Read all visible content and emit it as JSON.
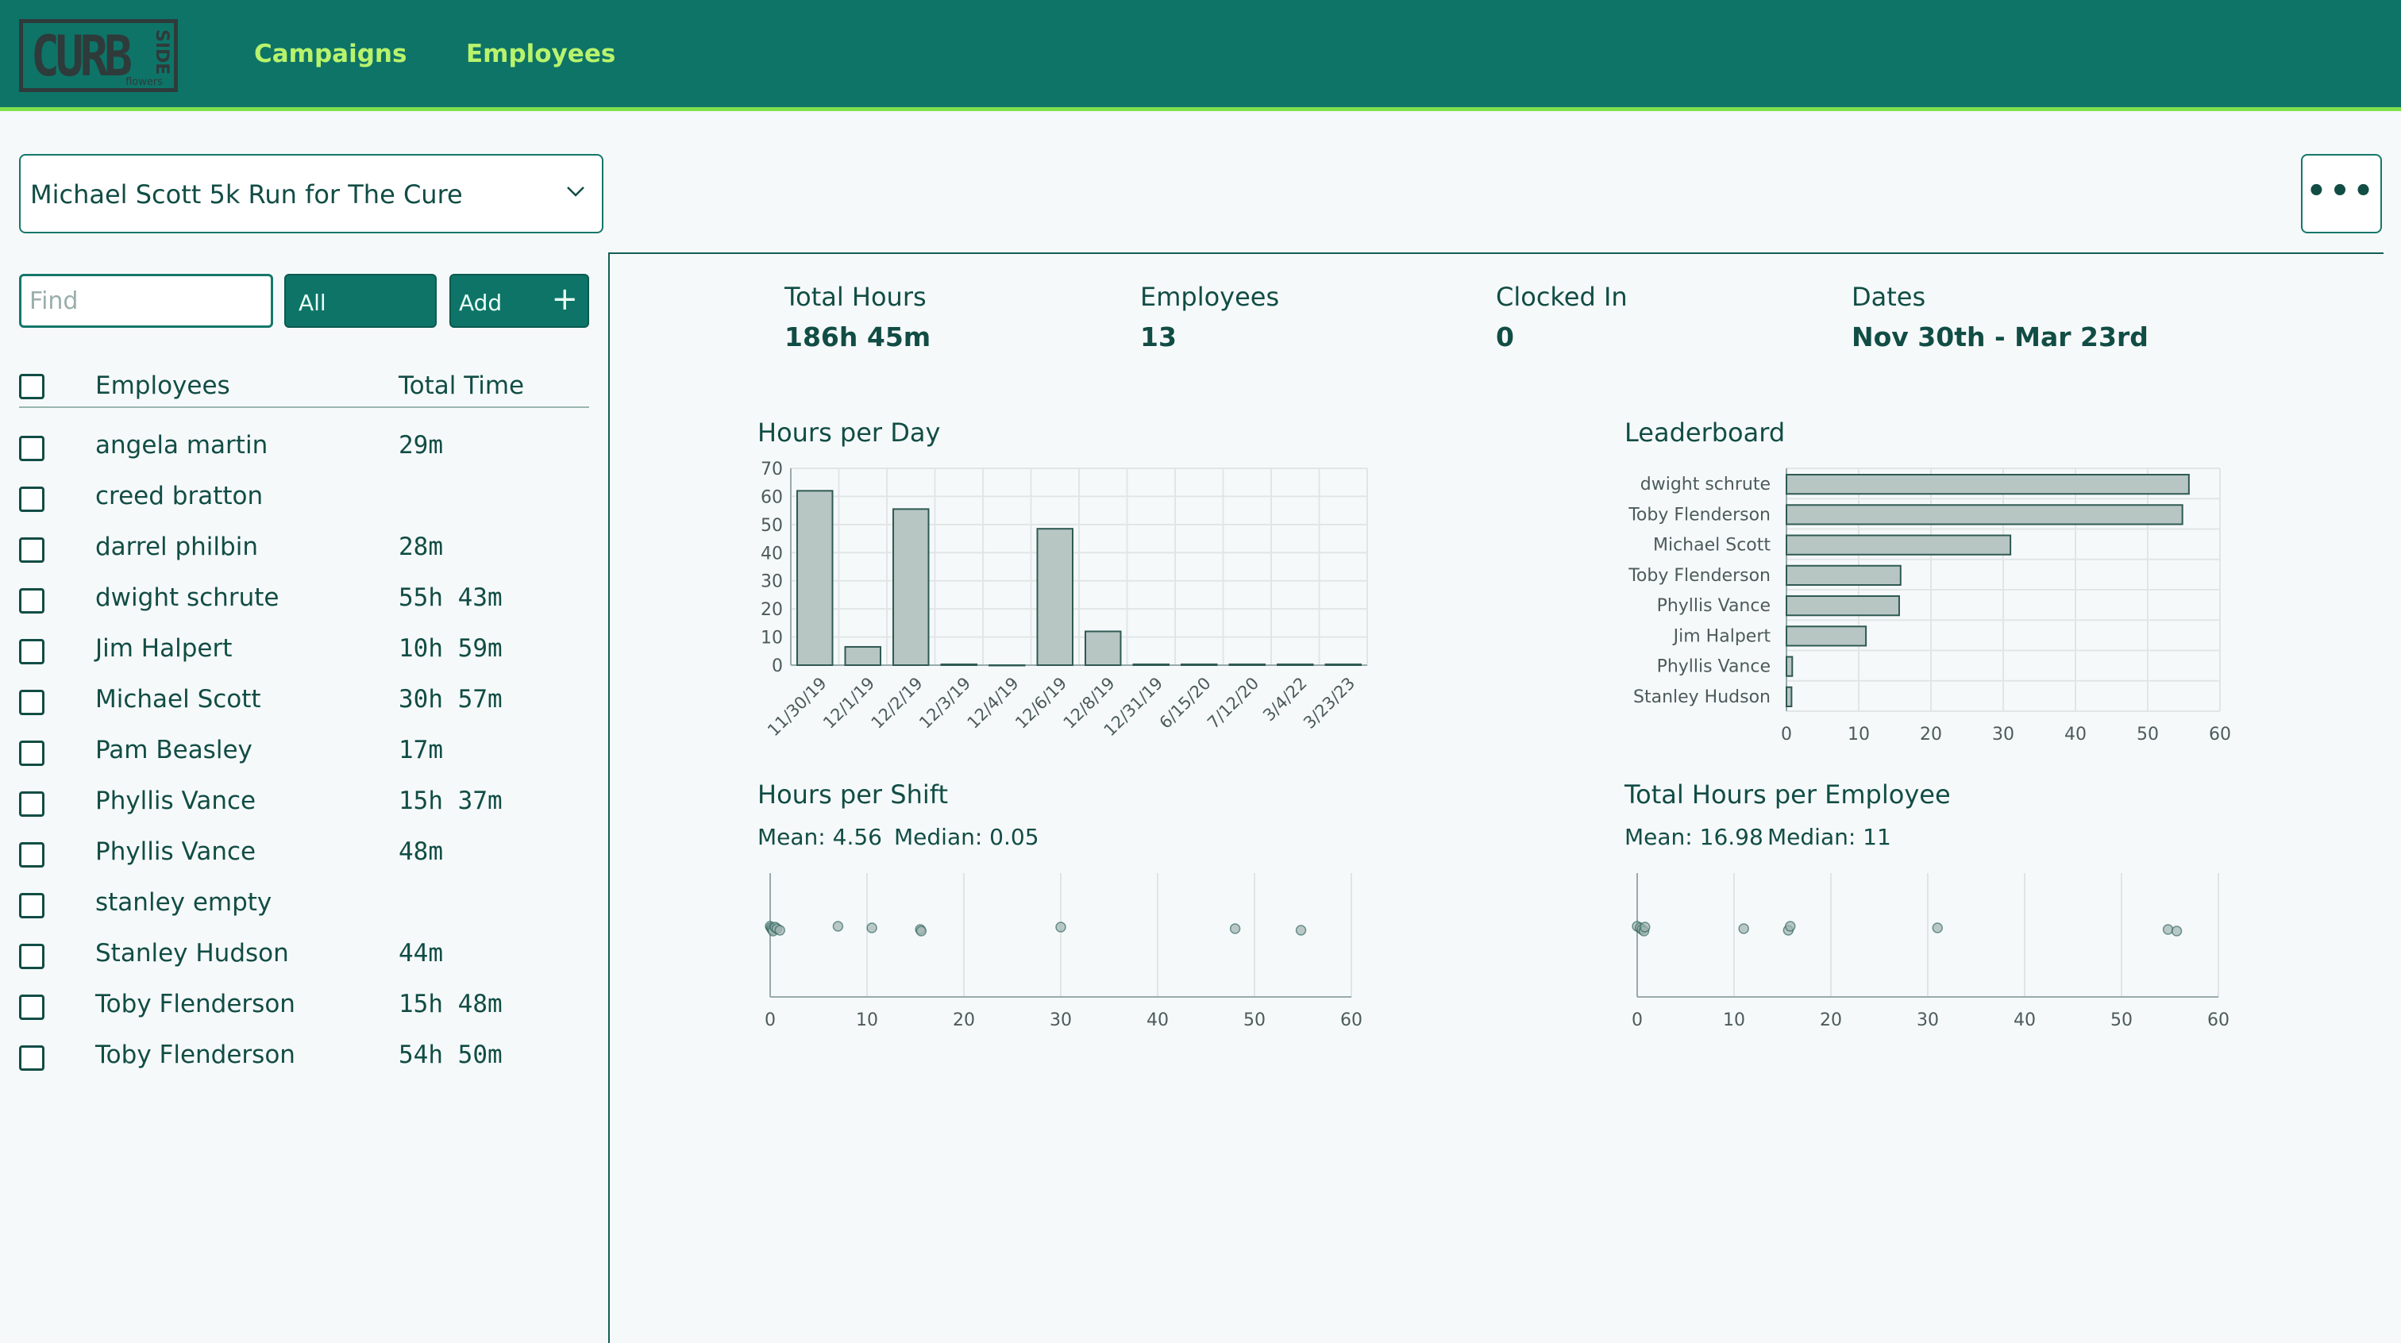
{
  "nav": {
    "logo_text": "CURB",
    "logo_side": "SIDE",
    "logo_sub": "flowers",
    "links": [
      "Campaigns",
      "Employees"
    ]
  },
  "campaign": {
    "selected": "Michael Scott 5k Run for The Cure"
  },
  "more_label": "•••",
  "left_panel": {
    "find_placeholder": "Find",
    "all_label": "All",
    "add_label": "Add",
    "add_icon": "+",
    "col_employees": "Employees",
    "col_total_time": "Total Time",
    "employees": [
      {
        "name": "angela martin",
        "time": "29m"
      },
      {
        "name": "creed bratton",
        "time": ""
      },
      {
        "name": "darrel philbin",
        "time": "28m"
      },
      {
        "name": "dwight schrute",
        "time": "55h 43m"
      },
      {
        "name": "Jim Halpert",
        "time": "10h 59m"
      },
      {
        "name": "Michael Scott",
        "time": "30h 57m"
      },
      {
        "name": "Pam Beasley",
        "time": "17m"
      },
      {
        "name": "Phyllis Vance",
        "time": "15h 37m"
      },
      {
        "name": "Phyllis Vance",
        "time": "48m"
      },
      {
        "name": "stanley empty",
        "time": ""
      },
      {
        "name": "Stanley Hudson",
        "time": "44m"
      },
      {
        "name": "Toby Flenderson",
        "time": "15h 48m"
      },
      {
        "name": "Toby Flenderson",
        "time": "54h 50m"
      }
    ]
  },
  "stats": {
    "total_hours": {
      "label": "Total Hours",
      "value": "186h 45m"
    },
    "employees": {
      "label": "Employees",
      "value": "13"
    },
    "clocked_in": {
      "label": "Clocked In",
      "value": "0"
    },
    "dates": {
      "label": "Dates",
      "value": "Nov 30th - Mar 23rd"
    }
  },
  "colors": {
    "nav_bg": "#0e7468",
    "nav_link": "#b8f36c",
    "bar_fill": "#b7c6c3",
    "bar_stroke": "#2e5a52"
  },
  "chart_data": [
    {
      "type": "bar",
      "title": "Hours per Day",
      "categories": [
        "11/30/19",
        "12/1/19",
        "12/2/19",
        "12/3/19",
        "12/4/19",
        "12/6/19",
        "12/8/19",
        "12/31/19",
        "6/15/20",
        "7/12/20",
        "3/4/22",
        "3/23/23"
      ],
      "values": [
        62,
        6.5,
        55.5,
        0.3,
        0,
        48.5,
        12,
        0.3,
        0.3,
        0.3,
        0.3,
        0.3
      ],
      "ylim": [
        0,
        70
      ],
      "yticks": [
        0,
        10,
        20,
        30,
        40,
        50,
        60,
        70
      ],
      "grid": true
    },
    {
      "type": "bar",
      "orientation": "horizontal",
      "title": "Leaderboard",
      "categories": [
        "dwight schrute",
        "Toby Flenderson",
        "Michael Scott",
        "Toby Flenderson",
        "Phyllis Vance",
        "Jim Halpert",
        "Phyllis Vance",
        "Stanley Hudson"
      ],
      "values": [
        55.7,
        54.8,
        31,
        15.8,
        15.6,
        11,
        0.8,
        0.7
      ],
      "xlim": [
        0,
        60
      ],
      "xticks": [
        0,
        10,
        20,
        30,
        40,
        50,
        60
      ],
      "grid": true
    },
    {
      "type": "scatter",
      "title": "Hours per Shift",
      "subtitle_mean": "Mean: 4.56",
      "subtitle_median": "Median: 0.05",
      "x": [
        0,
        0.1,
        0.2,
        0.3,
        0.5,
        0.7,
        1,
        7,
        10.5,
        15.5,
        15.6,
        30,
        48,
        54.8
      ],
      "xlim": [
        0,
        60
      ],
      "xticks": [
        0,
        10,
        20,
        30,
        40,
        50,
        60
      ],
      "grid": true
    },
    {
      "type": "scatter",
      "title": "Total Hours per Employee",
      "subtitle_mean": "Mean: 16.98",
      "subtitle_median": "Median: 11",
      "x": [
        0,
        0.3,
        0.5,
        0.7,
        0.8,
        11,
        15.6,
        15.8,
        31,
        54.8,
        55.7
      ],
      "xlim": [
        0,
        60
      ],
      "xticks": [
        0,
        10,
        20,
        30,
        40,
        50,
        60
      ],
      "grid": true
    }
  ]
}
